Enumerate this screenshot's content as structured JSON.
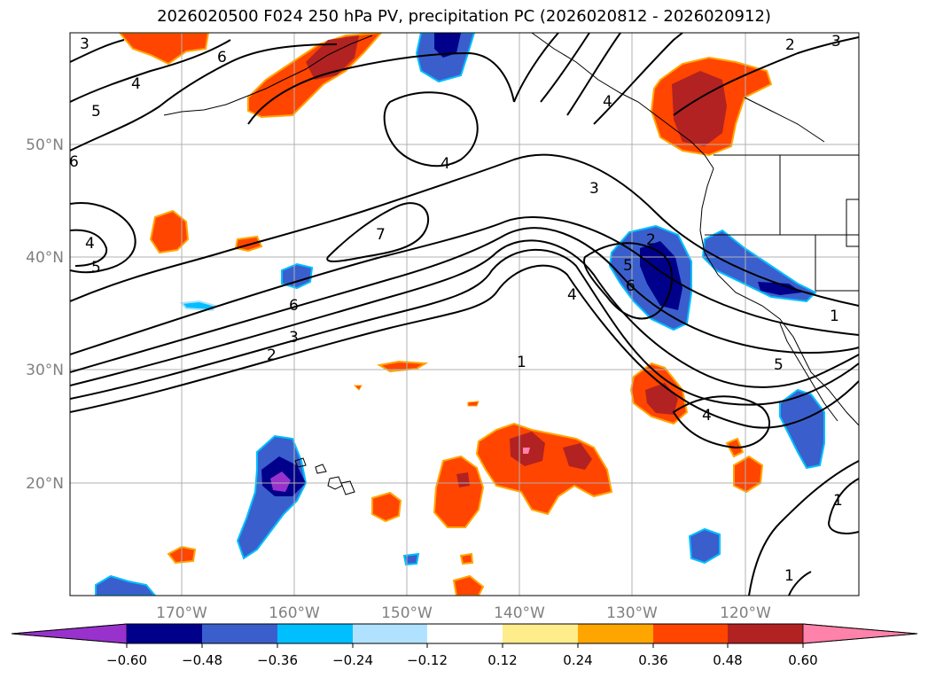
{
  "title": "2026020500 F024 250 hPa PV, precipitation PC (2026020812 - 2026020912)",
  "map": {
    "lat_labels": [
      "50°N",
      "40°N",
      "30°N",
      "20°N"
    ],
    "lon_labels": [
      "170°W",
      "160°W",
      "150°W",
      "140°W",
      "130°W",
      "120°W"
    ],
    "contour_labels": [
      "3",
      "4",
      "5",
      "6",
      "6",
      "4",
      "7",
      "4",
      "5",
      "6",
      "3",
      "2",
      "3",
      "4",
      "2",
      "5",
      "6",
      "4",
      "1",
      "1",
      "5",
      "4",
      "1",
      "1",
      "2",
      "3"
    ]
  },
  "colorbar": {
    "tick_labels": [
      "−0.60",
      "−0.48",
      "−0.36",
      "−0.24",
      "−0.12",
      "0.12",
      "0.24",
      "0.36",
      "0.48",
      "0.60"
    ],
    "colors": [
      "#9932cc",
      "#00008b",
      "#3a5fcd",
      "#00bfff",
      "#b0e2ff",
      "#ffffff",
      "#ffec8b",
      "#ffa500",
      "#ff4500",
      "#b22222",
      "#ff82ab"
    ]
  },
  "palette": {
    "neg_strong": "#00008b",
    "neg_mid": "#3a5fcd",
    "neg_light": "#00bfff",
    "pos_mid": "#ff4500",
    "pos_strong": "#b22222",
    "pos_max": "#ff82ab",
    "gridline": "#b0b0b0",
    "contour": "#000000"
  }
}
